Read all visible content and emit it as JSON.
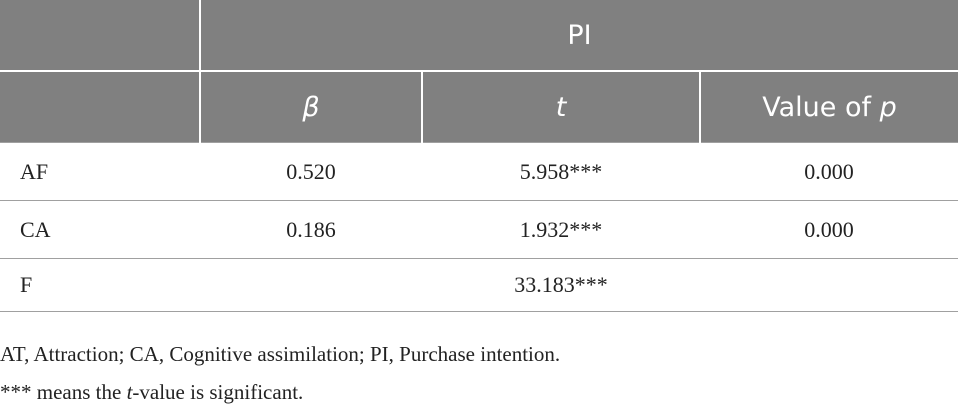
{
  "table": {
    "group_header": "PI",
    "column_headers": [
      [
        "β"
      ],
      [
        "t"
      ],
      [
        "Value of ",
        "p"
      ]
    ],
    "rows": [
      [
        "AF",
        "0.520",
        "5.958***",
        "0.000"
      ],
      [
        "CA",
        "0.186",
        "1.932***",
        "0.000"
      ],
      [
        "F",
        null,
        "33.183***",
        null
      ]
    ]
  },
  "footnotes": [
    [
      "AT, Attraction; CA, Cognitive assimilation; PI, Purchase intention."
    ],
    [
      "*** means the ",
      "t",
      "-value is significant."
    ]
  ]
}
